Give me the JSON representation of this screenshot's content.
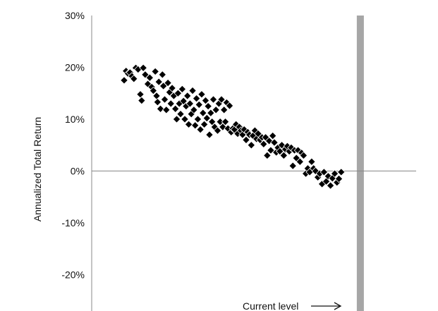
{
  "chart_data": {
    "type": "scatter",
    "title": "",
    "xlabel": "",
    "ylabel": "Annualized Total Return",
    "ylim": [
      -0.27,
      0.3
    ],
    "xlim": [
      0,
      100
    ],
    "yticks": [
      0.3,
      0.2,
      0.1,
      0.0,
      -0.1,
      -0.2
    ],
    "ytick_labels": [
      "30%",
      "20%",
      "10%",
      "0%",
      "-10%",
      "-20%"
    ],
    "grid": false,
    "legend": "none",
    "marker": "diamond",
    "marker_color": "#000000",
    "current_level": {
      "x": 82.8,
      "label": "Current level",
      "band_color": "#a6a6a6"
    },
    "series": [
      {
        "values": [
          [
            10.0,
            0.175
          ],
          [
            10.6,
            0.193
          ],
          [
            11.2,
            0.188
          ],
          [
            11.8,
            0.19
          ],
          [
            12.4,
            0.183
          ],
          [
            13.0,
            0.178
          ],
          [
            13.6,
            0.199
          ],
          [
            14.3,
            0.196
          ],
          [
            15.0,
            0.148
          ],
          [
            15.4,
            0.136
          ],
          [
            15.9,
            0.199
          ],
          [
            16.5,
            0.186
          ],
          [
            17.3,
            0.168
          ],
          [
            17.9,
            0.18
          ],
          [
            18.5,
            0.162
          ],
          [
            19.0,
            0.155
          ],
          [
            19.6,
            0.192
          ],
          [
            20.0,
            0.145
          ],
          [
            20.3,
            0.133
          ],
          [
            20.7,
            0.172
          ],
          [
            21.2,
            0.12
          ],
          [
            21.8,
            0.186
          ],
          [
            22.1,
            0.164
          ],
          [
            22.5,
            0.138
          ],
          [
            23.0,
            0.118
          ],
          [
            23.5,
            0.17
          ],
          [
            24.0,
            0.152
          ],
          [
            24.4,
            0.13
          ],
          [
            24.8,
            0.16
          ],
          [
            25.3,
            0.145
          ],
          [
            25.8,
            0.12
          ],
          [
            26.2,
            0.1
          ],
          [
            26.6,
            0.15
          ],
          [
            27.0,
            0.13
          ],
          [
            27.4,
            0.11
          ],
          [
            27.9,
            0.158
          ],
          [
            28.3,
            0.135
          ],
          [
            28.7,
            0.1
          ],
          [
            29.1,
            0.125
          ],
          [
            29.5,
            0.145
          ],
          [
            29.9,
            0.09
          ],
          [
            30.3,
            0.13
          ],
          [
            30.7,
            0.11
          ],
          [
            31.1,
            0.155
          ],
          [
            31.5,
            0.118
          ],
          [
            31.9,
            0.088
          ],
          [
            32.3,
            0.14
          ],
          [
            32.7,
            0.1
          ],
          [
            33.1,
            0.128
          ],
          [
            33.5,
            0.08
          ],
          [
            33.9,
            0.148
          ],
          [
            34.3,
            0.112
          ],
          [
            34.7,
            0.09
          ],
          [
            35.1,
            0.136
          ],
          [
            35.5,
            0.102
          ],
          [
            35.9,
            0.125
          ],
          [
            36.3,
            0.07
          ],
          [
            36.7,
            0.112
          ],
          [
            37.1,
            0.095
          ],
          [
            37.5,
            0.138
          ],
          [
            37.9,
            0.085
          ],
          [
            38.3,
            0.118
          ],
          [
            38.8,
            0.078
          ],
          [
            39.2,
            0.13
          ],
          [
            39.6,
            0.095
          ],
          [
            40.0,
            0.138
          ],
          [
            40.4,
            0.085
          ],
          [
            40.8,
            0.118
          ],
          [
            41.2,
            0.095
          ],
          [
            41.6,
            0.132
          ],
          [
            42.0,
            0.082
          ],
          [
            42.5,
            0.126
          ],
          [
            43.0,
            0.075
          ],
          [
            43.5,
            0.082
          ],
          [
            44.0,
            0.08
          ],
          [
            44.5,
            0.09
          ],
          [
            45.0,
            0.072
          ],
          [
            45.5,
            0.085
          ],
          [
            46.0,
            0.078
          ],
          [
            46.5,
            0.07
          ],
          [
            47.0,
            0.08
          ],
          [
            47.6,
            0.06
          ],
          [
            48.1,
            0.075
          ],
          [
            48.6,
            0.07
          ],
          [
            49.2,
            0.05
          ],
          [
            49.7,
            0.068
          ],
          [
            50.3,
            0.078
          ],
          [
            50.8,
            0.062
          ],
          [
            51.3,
            0.072
          ],
          [
            51.9,
            0.06
          ],
          [
            52.5,
            0.065
          ],
          [
            53.0,
            0.052
          ],
          [
            53.6,
            0.065
          ],
          [
            54.1,
            0.03
          ],
          [
            54.7,
            0.058
          ],
          [
            55.2,
            0.04
          ],
          [
            55.8,
            0.068
          ],
          [
            56.3,
            0.055
          ],
          [
            56.9,
            0.036
          ],
          [
            57.4,
            0.045
          ],
          [
            58.0,
            0.038
          ],
          [
            58.6,
            0.05
          ],
          [
            59.2,
            0.03
          ],
          [
            59.7,
            0.042
          ],
          [
            60.3,
            0.048
          ],
          [
            60.9,
            0.038
          ],
          [
            61.5,
            0.045
          ],
          [
            62.0,
            0.01
          ],
          [
            62.5,
            0.04
          ],
          [
            63.1,
            0.025
          ],
          [
            63.6,
            0.04
          ],
          [
            64.2,
            0.018
          ],
          [
            64.7,
            0.035
          ],
          [
            65.3,
            0.03
          ],
          [
            66.0,
            -0.005
          ],
          [
            66.6,
            0.005
          ],
          [
            67.2,
            -0.002
          ],
          [
            67.8,
            0.018
          ],
          [
            68.4,
            0.005
          ],
          [
            69.0,
            0.0
          ],
          [
            69.7,
            -0.012
          ],
          [
            70.3,
            -0.005
          ],
          [
            71.0,
            -0.025
          ],
          [
            71.6,
            -0.002
          ],
          [
            72.3,
            -0.02
          ],
          [
            72.9,
            -0.01
          ],
          [
            73.6,
            -0.028
          ],
          [
            74.2,
            -0.014
          ],
          [
            74.9,
            -0.005
          ],
          [
            75.6,
            -0.022
          ],
          [
            76.2,
            -0.015
          ],
          [
            76.9,
            -0.002
          ]
        ]
      }
    ]
  }
}
